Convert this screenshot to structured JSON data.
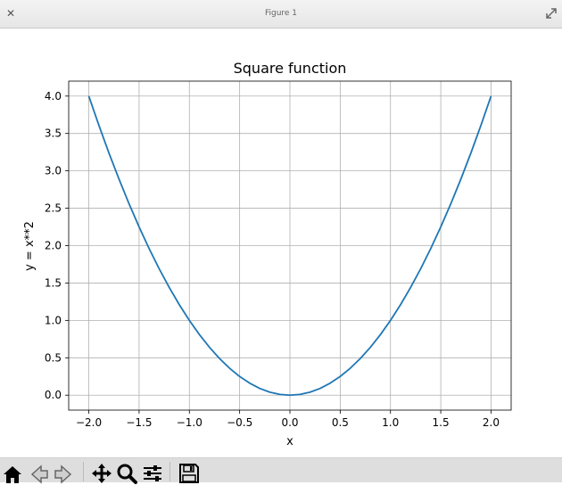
{
  "window": {
    "title": "Figure 1",
    "close_glyph": "✕"
  },
  "chart_data": {
    "type": "line",
    "title": "Square function",
    "xlabel": "x",
    "ylabel": "y = x**2",
    "xlim": [
      -2.2,
      2.2
    ],
    "ylim": [
      -0.2,
      4.2
    ],
    "xticks": [
      -2.0,
      -1.5,
      -1.0,
      -0.5,
      0.0,
      0.5,
      1.0,
      1.5,
      2.0
    ],
    "xtick_labels": [
      "−2.0",
      "−1.5",
      "−1.0",
      "−0.5",
      "0.0",
      "0.5",
      "1.0",
      "1.5",
      "2.0"
    ],
    "yticks": [
      0.0,
      0.5,
      1.0,
      1.5,
      2.0,
      2.5,
      3.0,
      3.5,
      4.0
    ],
    "ytick_labels": [
      "0.0",
      "0.5",
      "1.0",
      "1.5",
      "2.0",
      "2.5",
      "3.0",
      "3.5",
      "4.0"
    ],
    "grid": true,
    "line_color": "#1f77b4",
    "series": [
      {
        "x": [
          -2.0,
          -1.9,
          -1.8,
          -1.7,
          -1.6,
          -1.5,
          -1.4,
          -1.3,
          -1.2,
          -1.1,
          -1.0,
          -0.9,
          -0.8,
          -0.7,
          -0.6,
          -0.5,
          -0.4,
          -0.3,
          -0.2,
          -0.1,
          0.0,
          0.1,
          0.2,
          0.3,
          0.4,
          0.5,
          0.6,
          0.7,
          0.8,
          0.9,
          1.0,
          1.1,
          1.2,
          1.3,
          1.4,
          1.5,
          1.6,
          1.7,
          1.8,
          1.9,
          2.0
        ],
        "y": [
          4.0,
          3.61,
          3.24,
          2.89,
          2.56,
          2.25,
          1.96,
          1.69,
          1.44,
          1.21,
          1.0,
          0.81,
          0.64,
          0.49,
          0.36,
          0.25,
          0.16,
          0.09,
          0.04,
          0.01,
          0.0,
          0.01,
          0.04,
          0.09,
          0.16,
          0.25,
          0.36,
          0.49,
          0.64,
          0.81,
          1.0,
          1.21,
          1.44,
          1.69,
          1.96,
          2.25,
          2.56,
          2.89,
          3.24,
          3.61,
          4.0
        ]
      }
    ]
  },
  "toolbar": {
    "icons": [
      "home-icon",
      "back-icon",
      "forward-icon",
      "pan-icon",
      "zoom-icon",
      "configure-subplots-icon",
      "save-icon"
    ]
  }
}
